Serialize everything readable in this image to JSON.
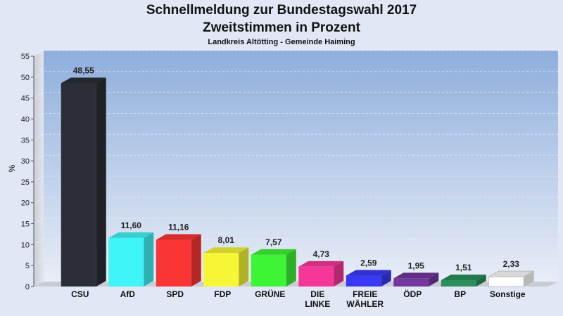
{
  "header": {
    "title": "Schnellmeldung zur Bundestagswahl 2017",
    "subtitle": "Zweitstimmen in Prozent",
    "caption": "Landkreis Altötting - Gemeinde Haiming"
  },
  "chart_data": {
    "type": "bar",
    "title": "Schnellmeldung zur Bundestagswahl 2017",
    "subtitle": "Zweitstimmen in Prozent",
    "ylabel": "%",
    "xlabel": "",
    "ylim": [
      0,
      55
    ],
    "yticks": [
      0,
      5,
      10,
      15,
      20,
      25,
      30,
      35,
      40,
      45,
      50,
      55
    ],
    "grid": true,
    "categories": [
      "CSU",
      "AfD",
      "SPD",
      "FDP",
      "GRÜNE",
      "DIE LINKE",
      "FREIE WÄHLER",
      "ÖDP",
      "BP",
      "Sonstige"
    ],
    "values": [
      48.55,
      11.6,
      11.16,
      8.01,
      7.57,
      4.73,
      2.59,
      1.95,
      1.51,
      2.33
    ],
    "value_labels": [
      "48,55",
      "11,60",
      "11,16",
      "8,01",
      "7,57",
      "4,73",
      "2,59",
      "1,95",
      "1,51",
      "2,33"
    ],
    "colors": [
      "#2b2e36",
      "#3ef4f6",
      "#fa3535",
      "#f6f636",
      "#3ef436",
      "#f6379a",
      "#3a3af4",
      "#74369f",
      "#2a8f5d",
      "#ffffff"
    ]
  }
}
